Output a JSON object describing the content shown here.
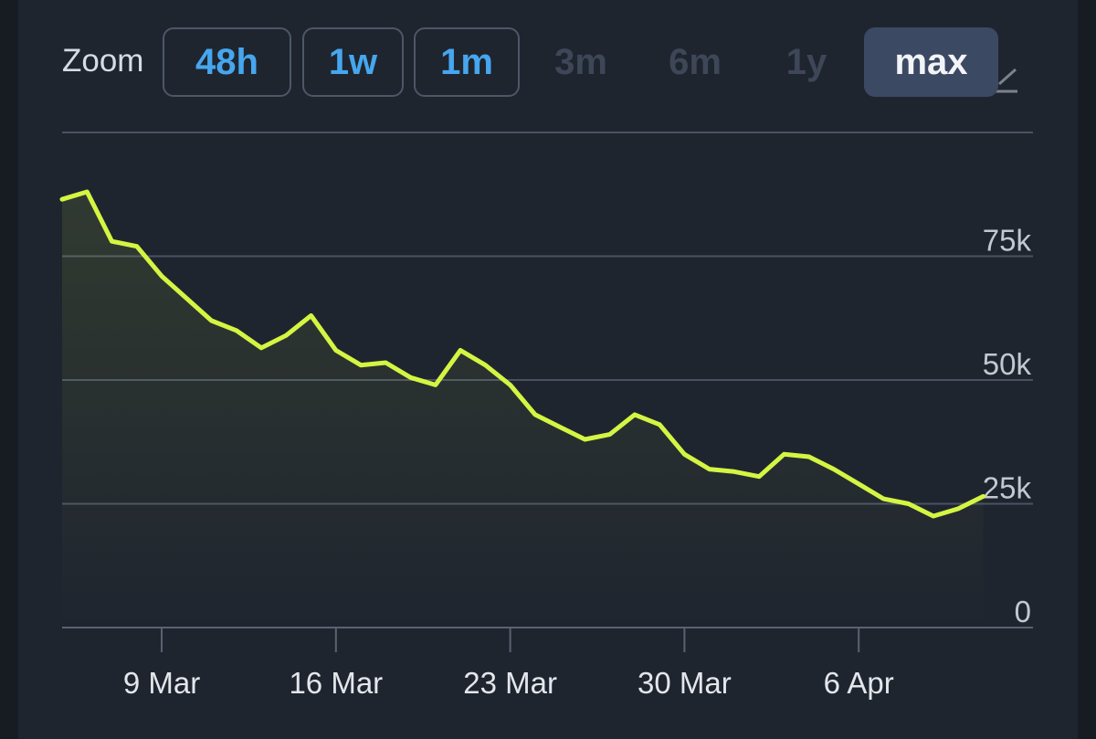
{
  "zoom": {
    "label": "Zoom",
    "options": [
      {
        "label": "48h",
        "state": "enabled"
      },
      {
        "label": "1w",
        "state": "enabled"
      },
      {
        "label": "1m",
        "state": "enabled"
      },
      {
        "label": "3m",
        "state": "disabled"
      },
      {
        "label": "6m",
        "state": "disabled"
      },
      {
        "label": "1y",
        "state": "disabled"
      },
      {
        "label": "max",
        "state": "selected"
      }
    ]
  },
  "colors": {
    "background": "#1f252f",
    "line": "#d4f542",
    "grid": "#4a5262",
    "button_text": "#46a6ee",
    "selected_button": "#3c4962"
  },
  "chart_data": {
    "type": "area",
    "title": "",
    "xlabel": "",
    "ylabel": "",
    "ylim": [
      0,
      100000
    ],
    "y_ticks": [
      {
        "value": 0,
        "label": "0"
      },
      {
        "value": 25000,
        "label": "25k"
      },
      {
        "value": 50000,
        "label": "50k"
      },
      {
        "value": 75000,
        "label": "75k"
      }
    ],
    "x_ticks": [
      {
        "date": "2025-03-09",
        "label": "9 Mar"
      },
      {
        "date": "2025-03-16",
        "label": "16 Mar"
      },
      {
        "date": "2025-03-23",
        "label": "23 Mar"
      },
      {
        "date": "2025-03-30",
        "label": "30 Mar"
      },
      {
        "date": "2025-04-06",
        "label": "6 Apr"
      }
    ],
    "xlim": [
      "2025-03-05",
      "2025-04-13"
    ],
    "grid": true,
    "series": [
      {
        "x": [
          "2025-03-05",
          "2025-03-06",
          "2025-03-07",
          "2025-03-08",
          "2025-03-09",
          "2025-03-10",
          "2025-03-11",
          "2025-03-12",
          "2025-03-13",
          "2025-03-14",
          "2025-03-15",
          "2025-03-16",
          "2025-03-17",
          "2025-03-18",
          "2025-03-19",
          "2025-03-20",
          "2025-03-21",
          "2025-03-22",
          "2025-03-23",
          "2025-03-24",
          "2025-03-25",
          "2025-03-26",
          "2025-03-27",
          "2025-03-28",
          "2025-03-29",
          "2025-03-30",
          "2025-03-31",
          "2025-04-01",
          "2025-04-02",
          "2025-04-03",
          "2025-04-04",
          "2025-04-05",
          "2025-04-06",
          "2025-04-07",
          "2025-04-08",
          "2025-04-09",
          "2025-04-10",
          "2025-04-11"
        ],
        "values": [
          86500,
          88000,
          78000,
          77000,
          71000,
          66500,
          62000,
          60000,
          56500,
          59000,
          63000,
          56000,
          53000,
          53500,
          50500,
          49000,
          56000,
          53000,
          49000,
          43000,
          40500,
          38000,
          39000,
          43000,
          41000,
          35000,
          32000,
          31500,
          30500,
          35000,
          34500,
          32000,
          29000,
          26000,
          25000,
          22500,
          24000,
          26500
        ]
      }
    ]
  }
}
